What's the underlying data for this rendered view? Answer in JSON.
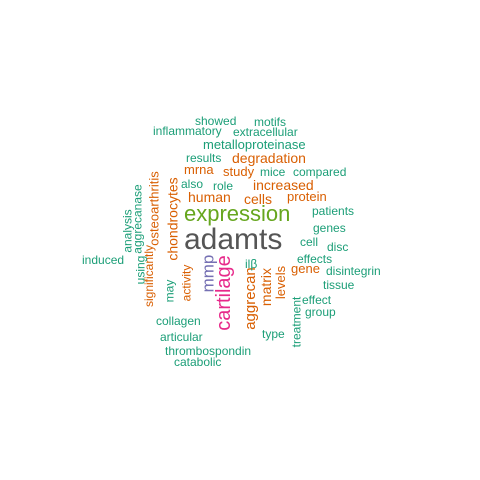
{
  "colors": {
    "teal": "#1b9e77",
    "orange": "#d95f02",
    "purple": "#7570b3",
    "magenta": "#e7298a",
    "green": "#66a61e",
    "gray": "#555555"
  },
  "words": [
    {
      "text": "adamts",
      "color": "gray"
    },
    {
      "text": "expression",
      "color": "green"
    },
    {
      "text": "cartilage",
      "color": "magenta"
    },
    {
      "text": "mmp",
      "color": "purple"
    },
    {
      "text": "aggrecan",
      "color": "orange"
    },
    {
      "text": "matrix",
      "color": "orange"
    },
    {
      "text": "cells",
      "color": "orange"
    },
    {
      "text": "human",
      "color": "orange"
    },
    {
      "text": "protein",
      "color": "orange"
    },
    {
      "text": "increased",
      "color": "orange"
    },
    {
      "text": "degradation",
      "color": "orange"
    },
    {
      "text": "chondrocytes",
      "color": "orange"
    },
    {
      "text": "osteoarthritis",
      "color": "orange"
    },
    {
      "text": "levels",
      "color": "orange"
    },
    {
      "text": "gene",
      "color": "orange"
    },
    {
      "text": "study",
      "color": "orange"
    },
    {
      "text": "mrna",
      "color": "orange"
    },
    {
      "text": "activity",
      "color": "orange"
    },
    {
      "text": "significantly",
      "color": "orange"
    },
    {
      "text": "metalloproteinase",
      "color": "teal"
    },
    {
      "text": "inflammatory",
      "color": "teal"
    },
    {
      "text": "extracellular",
      "color": "teal"
    },
    {
      "text": "showed",
      "color": "teal"
    },
    {
      "text": "motifs",
      "color": "teal"
    },
    {
      "text": "results",
      "color": "teal"
    },
    {
      "text": "mice",
      "color": "teal"
    },
    {
      "text": "compared",
      "color": "teal"
    },
    {
      "text": "also",
      "color": "teal"
    },
    {
      "text": "role",
      "color": "teal"
    },
    {
      "text": "patients",
      "color": "teal"
    },
    {
      "text": "genes",
      "color": "teal"
    },
    {
      "text": "cell",
      "color": "teal"
    },
    {
      "text": "disc",
      "color": "teal"
    },
    {
      "text": "effects",
      "color": "teal"
    },
    {
      "text": "disintegrin",
      "color": "teal"
    },
    {
      "text": "tissue",
      "color": "teal"
    },
    {
      "text": "effect",
      "color": "teal"
    },
    {
      "text": "group",
      "color": "teal"
    },
    {
      "text": "treatment",
      "color": "teal"
    },
    {
      "text": "type",
      "color": "teal"
    },
    {
      "text": "ilβ",
      "color": "teal"
    },
    {
      "text": "collagen",
      "color": "teal"
    },
    {
      "text": "articular",
      "color": "teal"
    },
    {
      "text": "thrombospondin",
      "color": "teal"
    },
    {
      "text": "catabolic",
      "color": "teal"
    },
    {
      "text": "may",
      "color": "teal"
    },
    {
      "text": "using",
      "color": "teal"
    },
    {
      "text": "induced",
      "color": "teal"
    },
    {
      "text": "analysis",
      "color": "teal"
    },
    {
      "text": "aggrecanase",
      "color": "teal"
    }
  ]
}
